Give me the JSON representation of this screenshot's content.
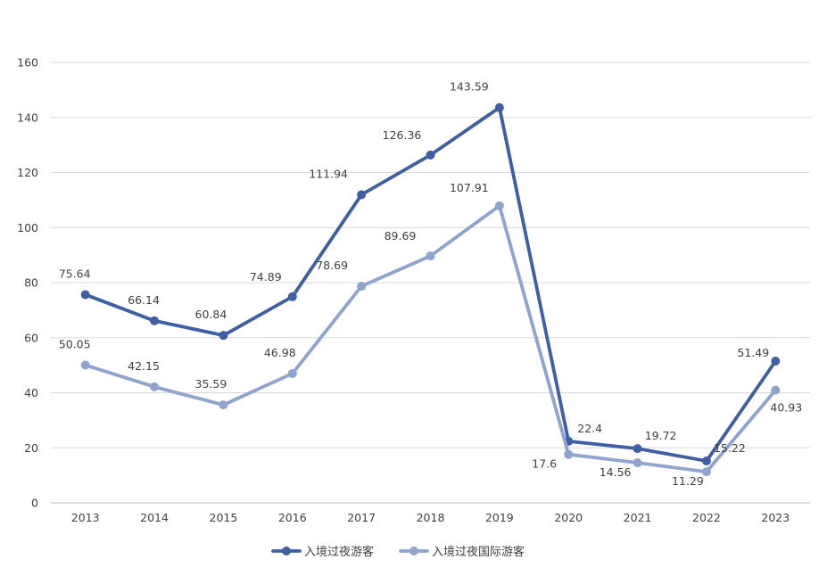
{
  "chart_data": {
    "type": "line",
    "categories": [
      "2013",
      "2014",
      "2015",
      "2016",
      "2017",
      "2018",
      "2019",
      "2020",
      "2021",
      "2022",
      "2023"
    ],
    "series": [
      {
        "name": "入境过夜游客",
        "color": "#3e5fa3",
        "values": [
          75.64,
          66.14,
          60.84,
          74.89,
          111.94,
          126.36,
          143.59,
          22.4,
          19.72,
          15.22,
          51.49
        ],
        "labels": [
          "75.64",
          "66.14",
          "60.84",
          "74.89",
          "111.94",
          "126.36",
          "143.59",
          "22.4",
          "19.72",
          "15.22",
          "51.49"
        ]
      },
      {
        "name": "入境过夜国际游客",
        "color": "#8fa3d0",
        "values": [
          50.05,
          42.15,
          35.59,
          46.98,
          78.69,
          89.69,
          107.91,
          17.6,
          14.56,
          11.29,
          40.93
        ],
        "labels": [
          "50.05",
          "42.15",
          "35.59",
          "46.98",
          "78.69",
          "89.69",
          "107.91",
          "17.6",
          "14.56",
          "11.29",
          "40.93"
        ]
      }
    ],
    "yticks": [
      "0",
      "20",
      "40",
      "60",
      "80",
      "100",
      "120",
      "140",
      "160"
    ],
    "ylim": [
      0,
      160
    ],
    "grid": true,
    "legend": "bottom-center"
  }
}
